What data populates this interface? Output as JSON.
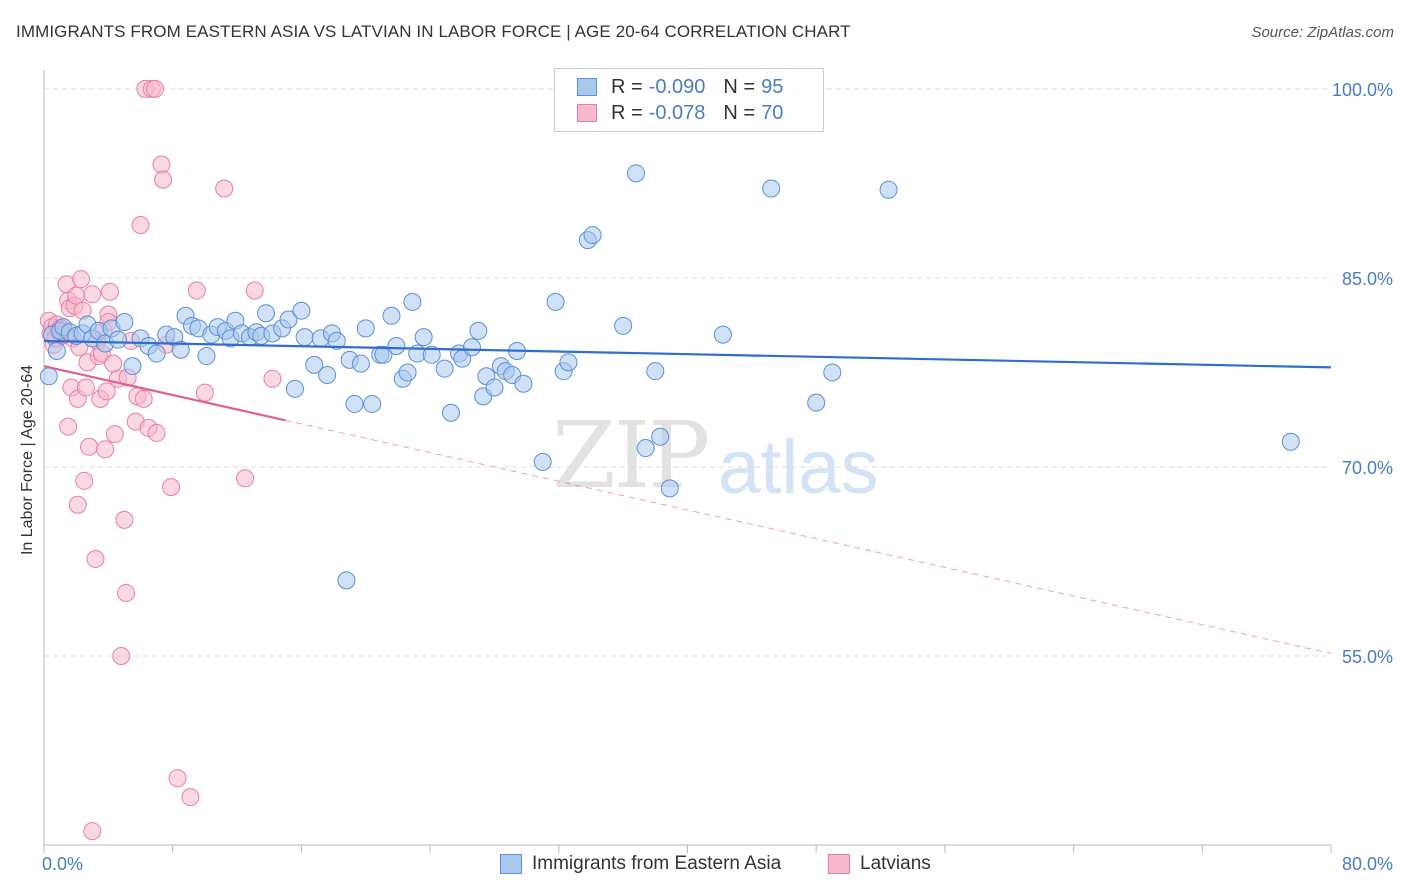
{
  "header": {
    "title": "IMMIGRANTS FROM EASTERN ASIA VS LATVIAN IN LABOR FORCE | AGE 20-64 CORRELATION CHART",
    "source": "Source: ZipAtlas.com"
  },
  "watermark": {
    "part1": "ZIP",
    "part2": "atlas"
  },
  "legend": {
    "rows": [
      {
        "r_label": "R =",
        "r_value": "-0.090",
        "n_label": "N =",
        "n_value": "95"
      },
      {
        "r_label": "R =",
        "r_value": "-0.078",
        "n_label": "N =",
        "n_value": "70"
      }
    ]
  },
  "bottom_legend": {
    "series1": "Immigrants from Eastern Asia",
    "series2": "Latvians"
  },
  "colors": {
    "blue_fill": "#a9c8ee",
    "blue_stroke": "#5b8fd6",
    "blue_line": "#2f6fcc",
    "pink_fill": "#f6b8cc",
    "pink_stroke": "#e87fa2",
    "pink_line": "#e0608c",
    "tick_text": "#4a7cc2",
    "grid": "#dddddd"
  },
  "chart_data": {
    "type": "scatter",
    "title": "IMMIGRANTS FROM EASTERN ASIA VS LATVIAN IN LABOR FORCE | AGE 20-64 CORRELATION CHART",
    "xlabel": "",
    "ylabel": "In Labor Force | Age 20-64",
    "xlim": [
      0,
      80
    ],
    "ylim": [
      40,
      101.5
    ],
    "x_tick_labels": [
      {
        "value": 0,
        "label": "0.0%"
      },
      {
        "value": 80,
        "label": "80.0%"
      }
    ],
    "y_tick_labels": [
      {
        "value": 100,
        "label": "100.0%"
      },
      {
        "value": 85,
        "label": "85.0%"
      },
      {
        "value": 70,
        "label": "70.0%"
      },
      {
        "value": 55,
        "label": "55.0%"
      }
    ],
    "y_gridlines": [
      100,
      85,
      70,
      55
    ],
    "x_minor_ticks": [
      0,
      8,
      16,
      24,
      32,
      40,
      48,
      56,
      64,
      72,
      80
    ],
    "series": [
      {
        "name": "Immigrants from Eastern Asia",
        "r": -0.09,
        "n": 95,
        "trend": {
          "x": [
            0,
            80
          ],
          "y": [
            80.0,
            77.9
          ]
        },
        "points": [
          [
            0.3,
            77.2
          ],
          [
            0.5,
            80.5
          ],
          [
            0.8,
            79.2
          ],
          [
            1.0,
            80.8
          ],
          [
            1.2,
            81.1
          ],
          [
            1.6,
            80.7
          ],
          [
            2.0,
            80.4
          ],
          [
            2.4,
            80.6
          ],
          [
            2.7,
            81.3
          ],
          [
            3.0,
            80.2
          ],
          [
            3.4,
            80.8
          ],
          [
            3.8,
            79.8
          ],
          [
            4.2,
            81.0
          ],
          [
            4.6,
            80.1
          ],
          [
            5.0,
            81.5
          ],
          [
            5.5,
            78.0
          ],
          [
            6.0,
            80.2
          ],
          [
            6.5,
            79.6
          ],
          [
            7.0,
            79.0
          ],
          [
            7.6,
            80.5
          ],
          [
            8.1,
            80.3
          ],
          [
            8.5,
            79.3
          ],
          [
            8.8,
            82.0
          ],
          [
            9.2,
            81.2
          ],
          [
            9.6,
            81.0
          ],
          [
            10.1,
            78.8
          ],
          [
            10.4,
            80.5
          ],
          [
            10.8,
            81.1
          ],
          [
            11.3,
            80.8
          ],
          [
            11.6,
            80.2
          ],
          [
            11.9,
            81.6
          ],
          [
            12.3,
            80.6
          ],
          [
            12.8,
            80.3
          ],
          [
            13.2,
            80.7
          ],
          [
            13.5,
            80.4
          ],
          [
            13.8,
            82.2
          ],
          [
            14.2,
            80.6
          ],
          [
            14.8,
            81.0
          ],
          [
            15.2,
            81.7
          ],
          [
            16.0,
            82.4
          ],
          [
            15.6,
            76.2
          ],
          [
            16.2,
            80.3
          ],
          [
            16.8,
            78.1
          ],
          [
            17.2,
            80.2
          ],
          [
            17.6,
            77.3
          ],
          [
            17.9,
            80.6
          ],
          [
            18.2,
            80.0
          ],
          [
            18.8,
            61.0
          ],
          [
            19.0,
            78.5
          ],
          [
            19.3,
            75.0
          ],
          [
            19.7,
            78.2
          ],
          [
            20.0,
            81.0
          ],
          [
            20.4,
            75.0
          ],
          [
            20.9,
            78.9
          ],
          [
            21.1,
            78.9
          ],
          [
            21.6,
            82.0
          ],
          [
            21.9,
            79.6
          ],
          [
            22.3,
            77.0
          ],
          [
            22.6,
            77.5
          ],
          [
            22.9,
            83.1
          ],
          [
            23.2,
            79.0
          ],
          [
            23.6,
            80.3
          ],
          [
            24.1,
            78.9
          ],
          [
            24.9,
            77.8
          ],
          [
            25.3,
            74.3
          ],
          [
            25.8,
            79.0
          ],
          [
            26.0,
            78.6
          ],
          [
            26.6,
            79.5
          ],
          [
            27.0,
            80.8
          ],
          [
            27.3,
            75.6
          ],
          [
            27.5,
            77.2
          ],
          [
            28.0,
            76.3
          ],
          [
            28.4,
            78.0
          ],
          [
            28.7,
            77.6
          ],
          [
            29.1,
            77.3
          ],
          [
            29.4,
            79.2
          ],
          [
            29.8,
            76.6
          ],
          [
            31.0,
            70.4
          ],
          [
            31.8,
            83.1
          ],
          [
            32.3,
            77.6
          ],
          [
            32.6,
            78.3
          ],
          [
            33.8,
            88.0
          ],
          [
            34.1,
            88.4
          ],
          [
            36.0,
            81.2
          ],
          [
            36.8,
            93.3
          ],
          [
            37.4,
            71.5
          ],
          [
            38.0,
            77.6
          ],
          [
            38.3,
            72.4
          ],
          [
            38.9,
            68.3
          ],
          [
            42.2,
            80.5
          ],
          [
            45.2,
            92.1
          ],
          [
            48.0,
            75.1
          ],
          [
            49.0,
            77.5
          ],
          [
            52.5,
            92.0
          ],
          [
            77.5,
            72.0
          ]
        ]
      },
      {
        "name": "Latvians",
        "r": -0.078,
        "n": 70,
        "trend": {
          "x": [
            0,
            15
          ],
          "y": [
            78.0,
            73.7
          ]
        },
        "trend_extension": {
          "x": [
            15,
            80
          ],
          "y": [
            73.7,
            55.2
          ]
        },
        "points": [
          [
            0.3,
            81.6
          ],
          [
            0.4,
            80.6
          ],
          [
            0.5,
            81.1
          ],
          [
            0.6,
            79.7
          ],
          [
            0.7,
            80.2
          ],
          [
            0.8,
            81.3
          ],
          [
            0.9,
            80.8
          ],
          [
            1.0,
            81.0
          ],
          [
            1.1,
            80.4
          ],
          [
            1.2,
            80.9
          ],
          [
            1.3,
            80.5
          ],
          [
            1.4,
            84.5
          ],
          [
            1.5,
            83.2
          ],
          [
            1.5,
            73.2
          ],
          [
            1.6,
            82.6
          ],
          [
            1.7,
            76.3
          ],
          [
            1.8,
            80.2
          ],
          [
            1.9,
            82.8
          ],
          [
            2.0,
            83.6
          ],
          [
            2.1,
            75.4
          ],
          [
            2.1,
            67.0
          ],
          [
            2.2,
            79.5
          ],
          [
            2.3,
            84.9
          ],
          [
            2.4,
            82.4
          ],
          [
            2.5,
            68.9
          ],
          [
            2.6,
            76.3
          ],
          [
            2.7,
            78.3
          ],
          [
            2.8,
            71.6
          ],
          [
            3.0,
            83.7
          ],
          [
            3.2,
            62.7
          ],
          [
            3.3,
            80.0
          ],
          [
            3.4,
            78.8
          ],
          [
            3.5,
            75.4
          ],
          [
            3.6,
            79.0
          ],
          [
            3.7,
            80.8
          ],
          [
            3.8,
            71.4
          ],
          [
            3.9,
            76.0
          ],
          [
            4.0,
            82.1
          ],
          [
            4.1,
            83.9
          ],
          [
            4.3,
            78.2
          ],
          [
            4.4,
            72.6
          ],
          [
            4.6,
            77.0
          ],
          [
            4.8,
            55.0
          ],
          [
            5.0,
            65.8
          ],
          [
            5.1,
            60.0
          ],
          [
            5.2,
            77.1
          ],
          [
            5.4,
            80.0
          ],
          [
            5.7,
            73.6
          ],
          [
            5.8,
            75.6
          ],
          [
            6.0,
            89.2
          ],
          [
            6.2,
            75.4
          ],
          [
            6.3,
            100.0
          ],
          [
            6.5,
            73.1
          ],
          [
            6.7,
            100.0
          ],
          [
            6.9,
            100.0
          ],
          [
            7.0,
            72.7
          ],
          [
            7.3,
            94.0
          ],
          [
            7.4,
            92.8
          ],
          [
            7.6,
            79.7
          ],
          [
            7.9,
            68.4
          ],
          [
            8.3,
            45.3
          ],
          [
            9.1,
            43.8
          ],
          [
            9.5,
            84.0
          ],
          [
            10.0,
            75.9
          ],
          [
            11.2,
            92.1
          ],
          [
            12.5,
            69.1
          ],
          [
            13.1,
            84.0
          ],
          [
            14.2,
            77.0
          ],
          [
            3.0,
            41.1
          ],
          [
            4.0,
            81.5
          ]
        ]
      }
    ]
  }
}
